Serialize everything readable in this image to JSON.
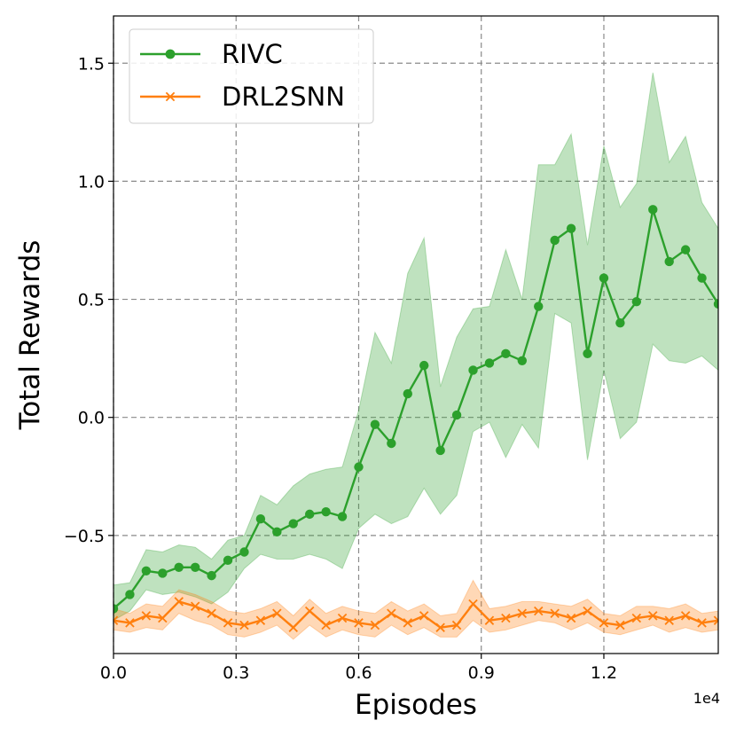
{
  "chart_data": {
    "type": "line",
    "title": "",
    "xlabel": "Episodes",
    "ylabel": "Total Rewards",
    "x_offset_label": "1e4",
    "xlim": [
      0.0,
      1.48
    ],
    "ylim": [
      -1.0,
      1.7
    ],
    "x_ticks": [
      0.0,
      0.3,
      0.6,
      0.9,
      1.2
    ],
    "x_tick_labels": [
      "0.0",
      "0.3",
      "0.6",
      "0.9",
      "1.2"
    ],
    "y_ticks": [
      -0.5,
      0.0,
      0.5,
      1.0,
      1.5
    ],
    "y_tick_labels": [
      "−0.5",
      "0.0",
      "0.5",
      "1.0",
      "1.5"
    ],
    "grid": true,
    "legend_position": "top-left",
    "x": [
      0.0,
      0.04,
      0.08,
      0.12,
      0.16,
      0.2,
      0.24,
      0.28,
      0.32,
      0.36,
      0.4,
      0.44,
      0.48,
      0.52,
      0.56,
      0.6,
      0.64,
      0.68,
      0.72,
      0.76,
      0.8,
      0.84,
      0.88,
      0.92,
      0.96,
      1.0,
      1.04,
      1.08,
      1.12,
      1.16,
      1.2,
      1.24,
      1.28,
      1.32,
      1.36,
      1.4,
      1.44,
      1.48
    ],
    "series": [
      {
        "name": "RIVC",
        "color": "#2ca02c",
        "fill_color": "#2ca02c",
        "marker": "circle",
        "values": [
          -0.81,
          -0.75,
          -0.65,
          -0.66,
          -0.635,
          -0.635,
          -0.67,
          -0.605,
          -0.57,
          -0.43,
          -0.485,
          -0.45,
          -0.41,
          -0.4,
          -0.42,
          -0.21,
          -0.03,
          -0.11,
          0.1,
          0.22,
          -0.14,
          0.01,
          0.2,
          0.23,
          0.27,
          0.24,
          0.47,
          0.75,
          0.8,
          0.27,
          0.59,
          0.4,
          0.49,
          0.88,
          0.66,
          0.71,
          0.59,
          0.48
        ],
        "lower": [
          -0.86,
          -0.82,
          -0.73,
          -0.75,
          -0.74,
          -0.76,
          -0.79,
          -0.74,
          -0.64,
          -0.58,
          -0.6,
          -0.6,
          -0.58,
          -0.6,
          -0.64,
          -0.47,
          -0.41,
          -0.45,
          -0.42,
          -0.3,
          -0.41,
          -0.33,
          -0.06,
          -0.02,
          -0.17,
          -0.03,
          -0.13,
          0.44,
          0.4,
          -0.18,
          0.2,
          -0.09,
          -0.02,
          0.31,
          0.24,
          0.23,
          0.26,
          0.2
        ],
        "upper": [
          -0.71,
          -0.7,
          -0.56,
          -0.57,
          -0.54,
          -0.55,
          -0.6,
          -0.52,
          -0.5,
          -0.33,
          -0.37,
          -0.29,
          -0.24,
          -0.22,
          -0.21,
          0.03,
          0.36,
          0.23,
          0.61,
          0.76,
          0.13,
          0.34,
          0.46,
          0.47,
          0.71,
          0.5,
          1.07,
          1.07,
          1.2,
          0.73,
          1.15,
          0.89,
          0.99,
          1.46,
          1.08,
          1.19,
          0.91,
          0.8
        ]
      },
      {
        "name": "DRL2SNN",
        "color": "#ff7f0e",
        "fill_color": "#ff7f0e",
        "marker": "x",
        "values": [
          -0.86,
          -0.87,
          -0.84,
          -0.85,
          -0.78,
          -0.8,
          -0.83,
          -0.87,
          -0.88,
          -0.86,
          -0.83,
          -0.89,
          -0.82,
          -0.88,
          -0.85,
          -0.87,
          -0.88,
          -0.83,
          -0.87,
          -0.84,
          -0.89,
          -0.88,
          -0.79,
          -0.86,
          -0.85,
          -0.83,
          -0.82,
          -0.83,
          -0.85,
          -0.82,
          -0.87,
          -0.88,
          -0.85,
          -0.84,
          -0.86,
          -0.84,
          -0.87,
          -0.86
        ],
        "lower": [
          -0.9,
          -0.91,
          -0.89,
          -0.9,
          -0.83,
          -0.86,
          -0.88,
          -0.92,
          -0.93,
          -0.91,
          -0.88,
          -0.94,
          -0.88,
          -0.93,
          -0.9,
          -0.92,
          -0.93,
          -0.88,
          -0.92,
          -0.89,
          -0.93,
          -0.93,
          -0.86,
          -0.91,
          -0.9,
          -0.88,
          -0.86,
          -0.87,
          -0.9,
          -0.87,
          -0.91,
          -0.92,
          -0.9,
          -0.88,
          -0.91,
          -0.89,
          -0.91,
          -0.9
        ],
        "upper": [
          -0.81,
          -0.83,
          -0.79,
          -0.8,
          -0.73,
          -0.75,
          -0.78,
          -0.82,
          -0.83,
          -0.81,
          -0.78,
          -0.84,
          -0.77,
          -0.83,
          -0.8,
          -0.82,
          -0.83,
          -0.78,
          -0.82,
          -0.79,
          -0.84,
          -0.83,
          -0.69,
          -0.81,
          -0.8,
          -0.78,
          -0.78,
          -0.79,
          -0.8,
          -0.77,
          -0.83,
          -0.84,
          -0.8,
          -0.8,
          -0.81,
          -0.79,
          -0.83,
          -0.82
        ]
      }
    ]
  }
}
